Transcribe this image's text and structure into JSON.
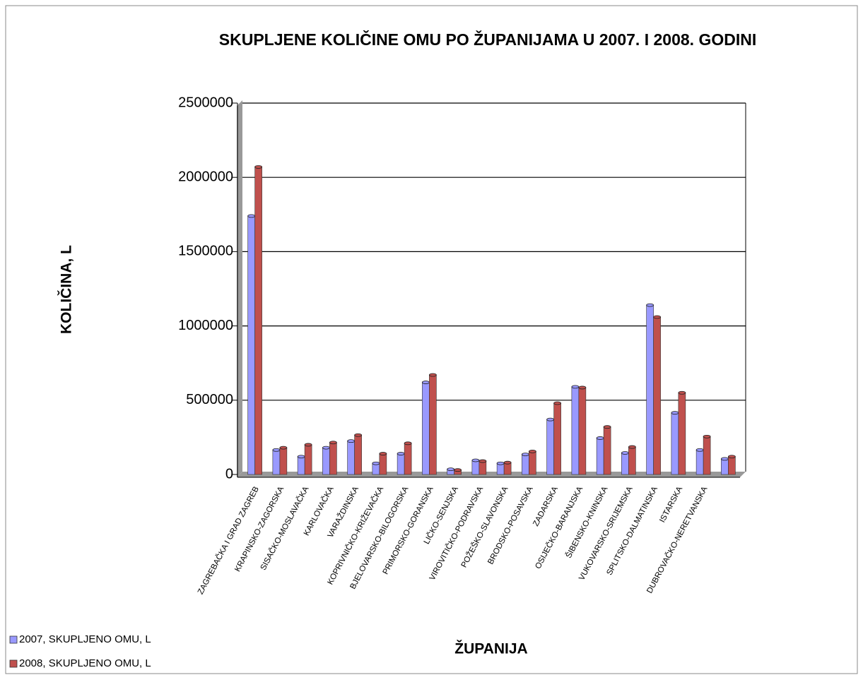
{
  "chart_data": {
    "type": "bar",
    "title": "SKUPLJENE KOLIČINE OMU PO ŽUPANIJAMA U 2007. I 2008. GODINI",
    "x_label": "ŽUPANIJA",
    "y_label": "KOLIČINA, L",
    "categories": [
      "ZAGREBAČKA I GRAD ZAGREB",
      "KRAPINSKO-ZAGORSKA",
      "SISAČKO-MOSLAVAČKA",
      "KARLOVAČKA",
      "VARAŽDINSKA",
      "KOPRIVNIČKO-KRIŽEVAČKA",
      "BJELOVARSKO-BILOGORSKA",
      "PRIMORSKO-GORANSKA",
      "LIČKO-SENJSKA",
      "VIROVITIČKO-PODRAVSKA",
      "POŽEŠKO-SLAVONSKA",
      "BRODSKO-POSAVSKA",
      "ZADARSKA",
      "OSIJEČKO-BARANJSKA",
      "ŠIBENSKO-KNINSKA",
      "VUKOVARSKO-SRIJEMSKA",
      "SPLITSKO-DALMATINSKA",
      "ISTARSKA",
      "DUBROVAČKO-NERETVANSKA",
      null
    ],
    "series": [
      {
        "name": "2007, SKUPLJENO OMU, L",
        "color": "#9999ff",
        "values": [
          1740000,
          165000,
          120000,
          180000,
          225000,
          75000,
          140000,
          620000,
          35000,
          95000,
          75000,
          135000,
          370000,
          590000,
          245000,
          145000,
          1140000,
          415000,
          165000,
          105000
        ]
      },
      {
        "name": "2008, SKUPLJENO OMU, L",
        "color": "#c0504d",
        "values": [
          2070000,
          180000,
          200000,
          215000,
          265000,
          140000,
          210000,
          670000,
          30000,
          90000,
          80000,
          155000,
          480000,
          585000,
          320000,
          185000,
          1060000,
          550000,
          255000,
          120000
        ]
      }
    ],
    "ylim": [
      0,
      2500000
    ],
    "yticks": [
      0,
      500000,
      1000000,
      1500000,
      2000000,
      2500000
    ],
    "grid": true,
    "legend": "bottom-left"
  }
}
